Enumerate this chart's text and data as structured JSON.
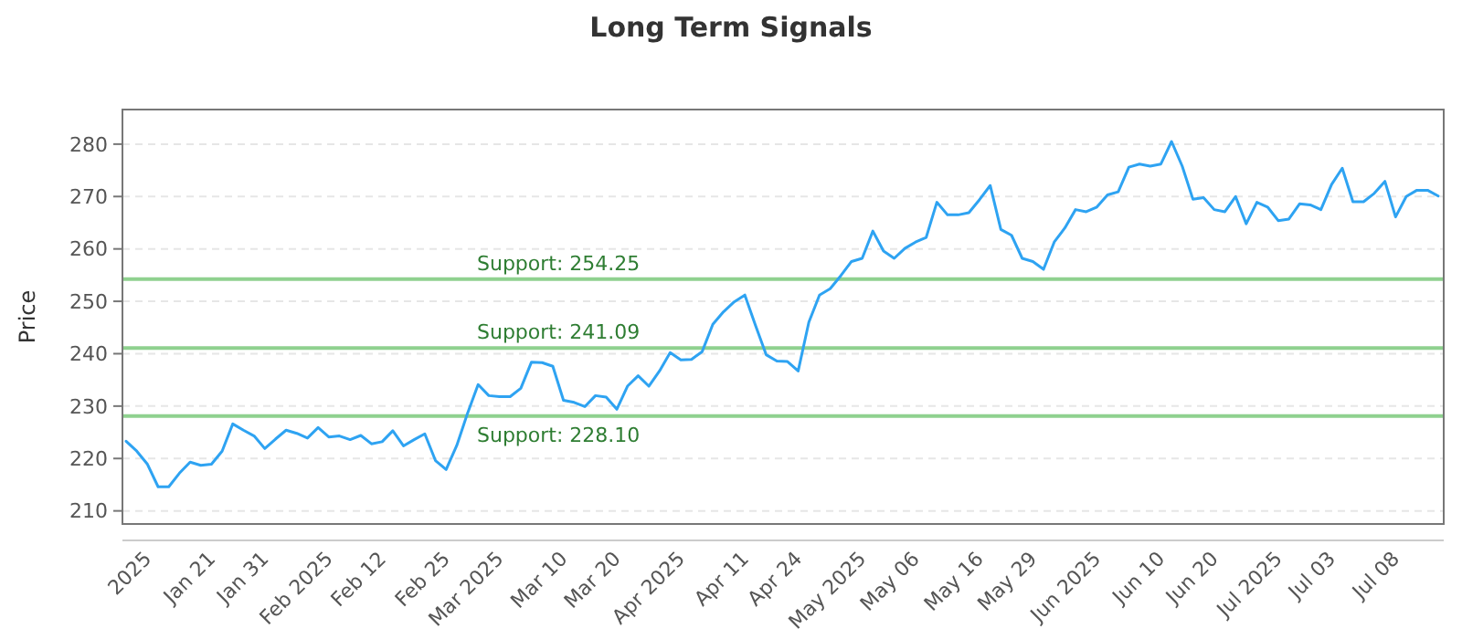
{
  "chart_data": {
    "type": "line",
    "title": "Long Term Signals",
    "ylabel": "Price",
    "categories": [
      null,
      null,
      "2025",
      null,
      null,
      null,
      null,
      null,
      "Jan 21",
      null,
      null,
      null,
      null,
      "Jan 31",
      null,
      null,
      null,
      null,
      null,
      "Feb 2025",
      null,
      null,
      null,
      null,
      "Feb 12",
      null,
      null,
      null,
      null,
      null,
      "Feb 25",
      null,
      null,
      null,
      null,
      "Mar 2025",
      null,
      null,
      null,
      null,
      null,
      "Mar 10",
      null,
      null,
      null,
      null,
      "Mar 20",
      null,
      null,
      null,
      null,
      null,
      "Apr 2025",
      null,
      null,
      null,
      null,
      null,
      "Apr 11",
      null,
      null,
      null,
      null,
      "Apr 24",
      null,
      null,
      null,
      null,
      null,
      "May 2025",
      null,
      null,
      null,
      null,
      "May 06",
      null,
      null,
      null,
      null,
      null,
      "May 16",
      null,
      null,
      null,
      null,
      "May 29",
      null,
      null,
      null,
      null,
      null,
      "Jun 2025",
      null,
      null,
      null,
      null,
      null,
      "Jun 10",
      null,
      null,
      null,
      null,
      "Jun 20",
      null,
      null,
      null,
      null,
      null,
      "Jul 2025",
      null,
      null,
      null,
      null,
      "Jul 03",
      null,
      null,
      null,
      null,
      null,
      "Jul 08",
      null,
      null,
      null,
      null
    ],
    "series": [
      {
        "color": "#2ea3f2",
        "values": [
          223.3,
          221.4,
          218.9,
          214.6,
          214.6,
          217.2,
          219.3,
          218.7,
          218.9,
          221.4,
          226.6,
          225.4,
          224.3,
          221.9,
          223.7,
          225.4,
          224.8,
          223.9,
          225.9,
          224.1,
          224.3,
          223.6,
          224.4,
          222.8,
          223.2,
          225.3,
          222.4,
          223.6,
          224.7,
          219.6,
          217.9,
          222.5,
          228.6,
          234.1,
          232.0,
          231.8,
          231.8,
          233.4,
          238.4,
          238.3,
          237.6,
          231.1,
          230.7,
          229.9,
          232.0,
          231.7,
          229.4,
          233.8,
          235.8,
          233.8,
          236.7,
          240.2,
          238.8,
          238.9,
          240.4,
          245.6,
          248.0,
          249.9,
          251.2,
          245.4,
          239.8,
          238.6,
          238.5,
          236.7,
          246.0,
          251.2,
          252.4,
          254.9,
          257.6,
          258.2,
          263.4,
          259.6,
          258.2,
          260.1,
          261.3,
          262.2,
          268.9,
          266.5,
          266.5,
          266.9,
          269.4,
          272.1,
          263.7,
          262.6,
          258.2,
          257.6,
          256.1,
          261.3,
          264.0,
          267.5,
          267.1,
          268.0,
          270.3,
          270.9,
          275.6,
          276.2,
          275.8,
          276.2,
          280.5,
          275.8,
          269.5,
          269.8,
          267.5,
          267.1,
          270.0,
          264.8,
          268.9,
          268.0,
          265.4,
          265.7,
          268.6,
          268.4,
          267.5,
          272.3,
          275.4,
          269.0,
          269.0,
          270.6,
          272.9,
          266.1,
          270.0,
          271.2,
          271.2,
          270.1
        ]
      }
    ],
    "ylim": [
      207.5,
      286.6
    ],
    "yticks": [
      210,
      220,
      230,
      240,
      250,
      260,
      270,
      280
    ],
    "grid": "y",
    "ref_lines": [
      {
        "axis": "y",
        "value": 254.25,
        "label": "Support: 254.25",
        "color": "#8fd18f"
      },
      {
        "axis": "y",
        "value": 241.09,
        "label": "Support: 241.09",
        "color": "#8fd18f"
      },
      {
        "axis": "y",
        "value": 228.1,
        "label": "Support: 228.10",
        "color": "#8fd18f"
      }
    ]
  }
}
